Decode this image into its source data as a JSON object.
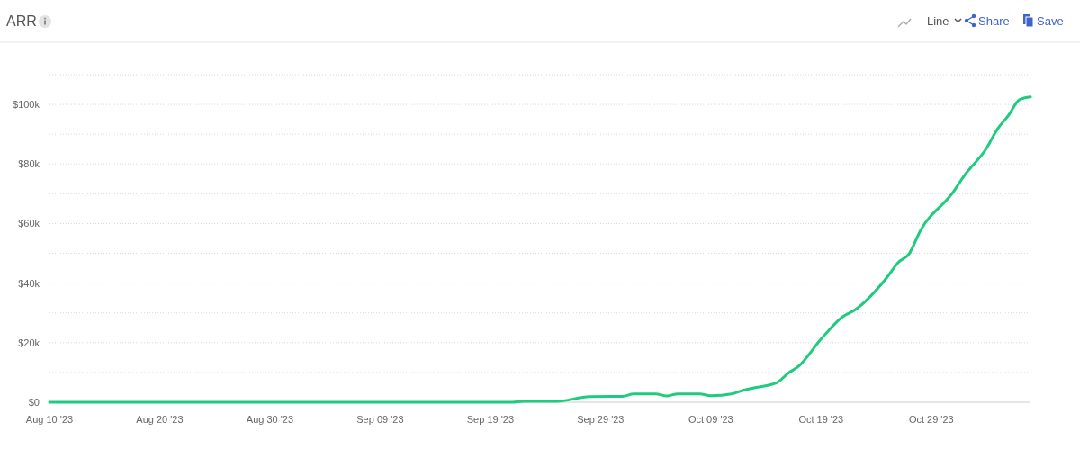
{
  "chart_data": {
    "type": "line",
    "title": "ARR",
    "annotations": [
      "Line",
      "Share",
      "Save"
    ],
    "x": [
      "2023-08-10",
      "2023-09-21",
      "2023-09-22",
      "2023-09-25",
      "2023-09-28",
      "2023-10-01",
      "2023-10-02",
      "2023-10-04",
      "2023-10-05",
      "2023-10-06",
      "2023-10-08",
      "2023-10-09",
      "2023-10-11",
      "2023-10-12",
      "2023-10-13",
      "2023-10-15",
      "2023-10-16",
      "2023-10-17",
      "2023-10-19",
      "2023-10-21",
      "2023-10-22",
      "2023-10-25",
      "2023-10-26",
      "2023-10-27",
      "2023-10-28",
      "2023-10-31",
      "2023-11-01",
      "2023-11-03",
      "2023-11-04",
      "2023-11-05",
      "2023-11-06",
      "2023-11-07"
    ],
    "series": [
      {
        "color": "#1ecb7f",
        "values": [
          0,
          0,
          0.3,
          0.3,
          1.9,
          2.0,
          2.8,
          2.8,
          2.1,
          2.8,
          2.8,
          2.2,
          2.9,
          4.1,
          4.9,
          6.6,
          9.7,
          12.2,
          21.2,
          28.8,
          30.8,
          42,
          46.9,
          49.9,
          57.5,
          70.6,
          76.1,
          85.2,
          91.7,
          96.3,
          101.6,
          102.5
        ]
      }
    ],
    "xlim": [
      "2023-08-10",
      "2023-11-07"
    ],
    "xticks": [
      {
        "value": "2023-08-10",
        "label": "Aug 10 '23"
      },
      {
        "value": "2023-08-20",
        "label": "Aug 20 '23"
      },
      {
        "value": "2023-08-30",
        "label": "Aug 30 '23"
      },
      {
        "value": "2023-09-09",
        "label": "Sep 09 '23"
      },
      {
        "value": "2023-09-19",
        "label": "Sep 19 '23"
      },
      {
        "value": "2023-09-29",
        "label": "Sep 29 '23"
      },
      {
        "value": "2023-10-09",
        "label": "Oct 09 '23"
      },
      {
        "value": "2023-10-19",
        "label": "Oct 19 '23"
      },
      {
        "value": "2023-10-29",
        "label": "Oct 29 '23"
      }
    ],
    "ylim": [
      0,
      110
    ],
    "yticks": [
      {
        "value": 0,
        "label": "$0"
      },
      {
        "value": 10,
        "label": null
      },
      {
        "value": 20,
        "label": "$20k"
      },
      {
        "value": 30,
        "label": null
      },
      {
        "value": 40,
        "label": "$40k"
      },
      {
        "value": 50,
        "label": null
      },
      {
        "value": 60,
        "label": "$60k"
      },
      {
        "value": 70,
        "label": null
      },
      {
        "value": 80,
        "label": "$80k"
      },
      {
        "value": 90,
        "label": null
      },
      {
        "value": 100,
        "label": "$100k"
      },
      {
        "value": 110,
        "label": null
      }
    ],
    "grid": "y",
    "marker": "none",
    "line_style": "solid"
  }
}
